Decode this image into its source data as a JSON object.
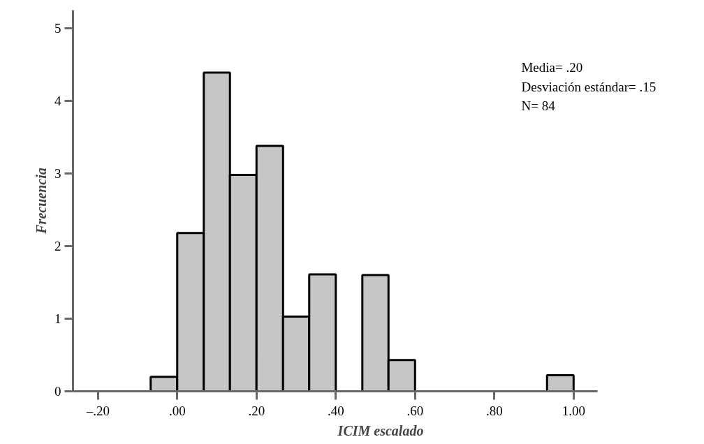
{
  "chart_data": {
    "type": "histogram",
    "xlabel": "ICIM  escalado",
    "ylabel": "Frecuencia",
    "bins": [
      -0.067,
      0,
      0.067,
      0.133,
      0.2,
      0.267,
      0.333,
      0.4,
      0.467,
      0.533,
      0.6,
      0.933,
      1.0
    ],
    "values": [
      0.2,
      2.18,
      4.39,
      2.98,
      3.38,
      1.03,
      1.61,
      0,
      1.6,
      0.43,
      0,
      0.22
    ],
    "color": "#c6c6c6",
    "xlim": [
      -0.263,
      1.06
    ],
    "ylim": [
      0,
      5.25
    ],
    "xticks": [
      {
        "value": -0.2,
        "label": "–.20"
      },
      {
        "value": 0,
        "label": ".00"
      },
      {
        "value": 0.2,
        "label": ".20"
      },
      {
        "value": 0.4,
        "label": ".40"
      },
      {
        "value": 0.6,
        "label": ".60"
      },
      {
        "value": 0.8,
        "label": ".80"
      },
      {
        "value": 1.0,
        "label": "1.00"
      }
    ],
    "yticks": [
      0,
      1,
      2,
      3,
      4,
      5
    ],
    "grid": false,
    "annotations": [
      "Media= .20",
      "Desviación estándar= .15",
      "N= 84"
    ]
  }
}
